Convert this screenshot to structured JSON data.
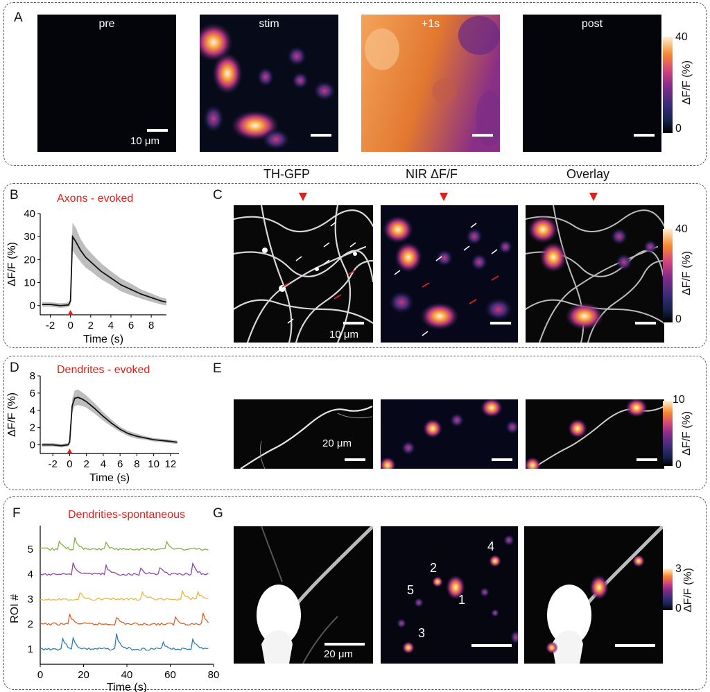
{
  "panels": {
    "A": {
      "label": "A",
      "images": [
        {
          "title": "pre",
          "scalebar_label": "10 μm"
        },
        {
          "title": "stim",
          "scalebar_label": ""
        },
        {
          "title": "+1s",
          "scalebar_label": ""
        },
        {
          "title": "post",
          "scalebar_label": ""
        }
      ],
      "colorbar": {
        "max": "40",
        "min": "0",
        "label": "ΔF/F (%)"
      }
    },
    "B": {
      "label": "B",
      "title": "Axons - evoked"
    },
    "C": {
      "label": "C",
      "columns": [
        "TH-GFP",
        "NIR ΔF/F",
        "Overlay"
      ],
      "scalebar_label": "10 μm",
      "colorbar": {
        "max": "40",
        "min": "0",
        "label": "ΔF/F (%)"
      }
    },
    "D": {
      "label": "D",
      "title": "Dendrites - evoked"
    },
    "E": {
      "label": "E",
      "scalebar_label": "20 μm",
      "colorbar": {
        "max": "10",
        "min": "0",
        "label": "ΔF/F (%)"
      }
    },
    "F": {
      "label": "F",
      "title": "Dendrities-spontaneous"
    },
    "G": {
      "label": "G",
      "scalebar_label": "20 μm",
      "roi_labels": [
        "1",
        "2",
        "3",
        "4",
        "5"
      ],
      "colorbar": {
        "max": "3",
        "min": "0",
        "label": "ΔF/F (%)"
      }
    }
  },
  "chart_data": [
    {
      "type": "line",
      "panel": "B",
      "title": "Axons - evoked",
      "xlabel": "Time (s)",
      "ylabel": "ΔF/F (%)",
      "xlim": [
        -3,
        9.5
      ],
      "ylim": [
        -4,
        40
      ],
      "xticks": [
        "-2",
        "0",
        "2",
        "4",
        "6",
        "8"
      ],
      "yticks": [
        "0",
        "10",
        "20",
        "30",
        "40"
      ],
      "stimulus_time": 0,
      "series": [
        {
          "x": [
            -2.8,
            -2,
            -1,
            -0.2,
            0,
            0.2,
            0.5,
            1,
            1.5,
            2,
            3,
            4,
            5,
            6,
            7,
            8,
            9,
            9.5
          ],
          "y": [
            0.5,
            0.5,
            0,
            0.3,
            2,
            30,
            28,
            24,
            21,
            19,
            15,
            12,
            9,
            7,
            5,
            3.5,
            2,
            1.5
          ],
          "sem": [
            1,
            1,
            1,
            1,
            1.5,
            6,
            6,
            5,
            4.5,
            4,
            3.5,
            3,
            2.8,
            2.5,
            2,
            1.8,
            1.5,
            1.5
          ]
        }
      ]
    },
    {
      "type": "line",
      "panel": "D",
      "title": "Dendrites - evoked",
      "xlabel": "Time (s)",
      "ylabel": "ΔF/F (%)",
      "xlim": [
        -3.5,
        13
      ],
      "ylim": [
        -1,
        8
      ],
      "xticks": [
        "-2",
        "0",
        "2",
        "4",
        "6",
        "8",
        "10",
        "12"
      ],
      "yticks": [
        "0",
        "2",
        "4",
        "6",
        "8"
      ],
      "stimulus_time": 0,
      "series": [
        {
          "x": [
            -3.3,
            -2,
            -1,
            -0.2,
            0,
            0.3,
            0.6,
            1,
            1.5,
            2,
            3,
            4,
            5,
            6,
            7,
            8,
            9,
            10,
            11,
            12,
            12.8
          ],
          "y": [
            0,
            0,
            -0.1,
            0,
            0.3,
            4.5,
            5.4,
            5.5,
            5.3,
            5,
            4.2,
            3.3,
            2.5,
            1.8,
            1.3,
            1,
            0.8,
            0.6,
            0.5,
            0.4,
            0.3
          ],
          "sem": [
            0.2,
            0.2,
            0.2,
            0.2,
            0.3,
            0.8,
            0.9,
            0.9,
            0.8,
            0.7,
            0.6,
            0.5,
            0.4,
            0.3,
            0.3,
            0.3,
            0.2,
            0.2,
            0.2,
            0.2,
            0.2
          ]
        }
      ]
    },
    {
      "type": "line",
      "panel": "F",
      "title": "Dendrities-spontaneous",
      "xlabel": "Time (s)",
      "ylabel": "ROI #",
      "xlim": [
        0,
        80
      ],
      "xticks": [
        "0",
        "20",
        "40",
        "60",
        "80"
      ],
      "yticks": [
        "1",
        "2",
        "3",
        "4",
        "5"
      ],
      "series": [
        {
          "name": "1",
          "color": "#2c7bb6",
          "peaks": [
            [
              10,
              5
            ],
            [
              15,
              4
            ],
            [
              35,
              6
            ],
            [
              56,
              4
            ],
            [
              70,
              5
            ]
          ]
        },
        {
          "name": "2",
          "color": "#d95f26",
          "peaks": [
            [
              13,
              5
            ],
            [
              35,
              3
            ],
            [
              62,
              3
            ],
            [
              75,
              4
            ]
          ]
        },
        {
          "name": "3",
          "color": "#e8b83a",
          "peaks": [
            [
              18,
              3
            ],
            [
              47,
              3
            ],
            [
              65,
              4
            ],
            [
              72,
              4
            ]
          ]
        },
        {
          "name": "4",
          "color": "#8e44ad",
          "peaks": [
            [
              15,
              5
            ],
            [
              30,
              4
            ],
            [
              46,
              3
            ],
            [
              55,
              3
            ],
            [
              70,
              5
            ]
          ]
        },
        {
          "name": "5",
          "color": "#7cb342",
          "peaks": [
            [
              8,
              5
            ],
            [
              16,
              4
            ],
            [
              30,
              3
            ],
            [
              58,
              3
            ]
          ]
        }
      ]
    }
  ]
}
